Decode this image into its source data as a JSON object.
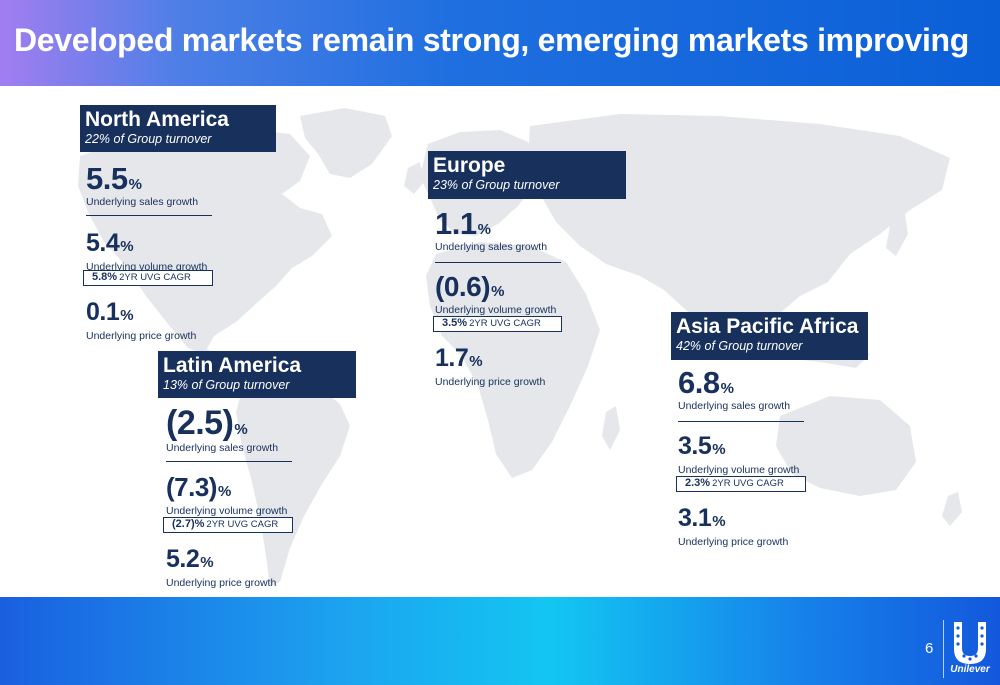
{
  "title": "Developed markets remain strong, emerging markets improving",
  "page_number": "6",
  "logo_text": "Unilever",
  "icons": {
    "logo": "unilever-u-logo-icon",
    "map": "world-map-icon"
  },
  "colors": {
    "navy": "#17305c",
    "map_grey": "#e6e7ea"
  },
  "regions": {
    "north_america": {
      "name": "North America",
      "turnover": "22% of Group turnover",
      "usg": {
        "value": "5.5",
        "unit": "%",
        "label": "Underlying sales growth"
      },
      "uvg": {
        "value": "5.4",
        "unit": "%",
        "label": "Underlying volume growth"
      },
      "cagr": {
        "value": "5.8%",
        "label": "2YR UVG CAGR"
      },
      "upg": {
        "value": "0.1",
        "unit": "%",
        "label": "Underlying price growth"
      }
    },
    "latin_america": {
      "name": "Latin America",
      "turnover": "13% of Group turnover",
      "usg": {
        "value": "(2.5)",
        "unit": "%",
        "label": "Underlying sales growth"
      },
      "uvg": {
        "value": "(7.3)",
        "unit": "%",
        "label": "Underlying volume growth"
      },
      "cagr": {
        "value": "(2.7)%",
        "label": "2YR UVG CAGR"
      },
      "upg": {
        "value": "5.2",
        "unit": "%",
        "label": "Underlying price growth"
      }
    },
    "europe": {
      "name": "Europe",
      "turnover": "23% of Group turnover",
      "usg": {
        "value": "1.1",
        "unit": "%",
        "label": "Underlying sales growth"
      },
      "uvg": {
        "value": "(0.6)",
        "unit": "%",
        "label": "Underlying volume growth"
      },
      "cagr": {
        "value": "3.5%",
        "label": "2YR UVG CAGR"
      },
      "upg": {
        "value": "1.7",
        "unit": "%",
        "label": "Underlying price growth"
      }
    },
    "apa": {
      "name": "Asia Pacific Africa",
      "turnover": "42% of Group turnover",
      "usg": {
        "value": "6.8",
        "unit": "%",
        "label": "Underlying sales growth"
      },
      "uvg": {
        "value": "3.5",
        "unit": "%",
        "label": "Underlying volume growth"
      },
      "cagr": {
        "value": "2.3%",
        "label": "2YR UVG CAGR"
      },
      "upg": {
        "value": "3.1",
        "unit": "%",
        "label": "Underlying price growth"
      }
    }
  }
}
